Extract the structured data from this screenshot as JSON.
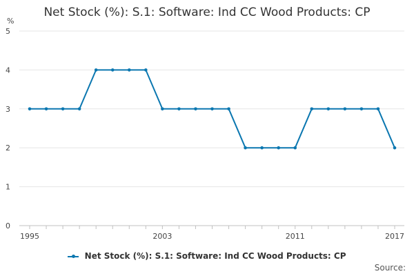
{
  "title": "Net Stock (%): S.1: Software: Ind CC Wood Products: CP",
  "source_label": "Source:",
  "colors": {
    "series": "#0b77b0",
    "grid": "#e6e6e6",
    "axis": "#c0c0c0",
    "text": "#333333"
  },
  "chart_data": {
    "type": "line",
    "title": "Net Stock (%): S.1: Software: Ind CC Wood Products: CP",
    "ylabel": "%",
    "xlabel": "",
    "ylim": [
      0,
      5
    ],
    "yticks": [
      0,
      1,
      2,
      3,
      4,
      5
    ],
    "xticks": [
      1995,
      2003,
      2011,
      2017
    ],
    "grid": true,
    "legend_position": "bottom",
    "series": [
      {
        "name": "Net Stock (%): S.1: Software: Ind CC Wood Products: CP",
        "x": [
          1995,
          1996,
          1997,
          1998,
          1999,
          2000,
          2001,
          2002,
          2003,
          2004,
          2005,
          2006,
          2007,
          2008,
          2009,
          2010,
          2011,
          2012,
          2013,
          2014,
          2015,
          2016,
          2017
        ],
        "values": [
          3,
          3,
          3,
          3,
          4,
          4,
          4,
          4,
          3,
          3,
          3,
          3,
          3,
          2,
          2,
          2,
          2,
          3,
          3,
          3,
          3,
          3,
          2
        ]
      }
    ]
  }
}
